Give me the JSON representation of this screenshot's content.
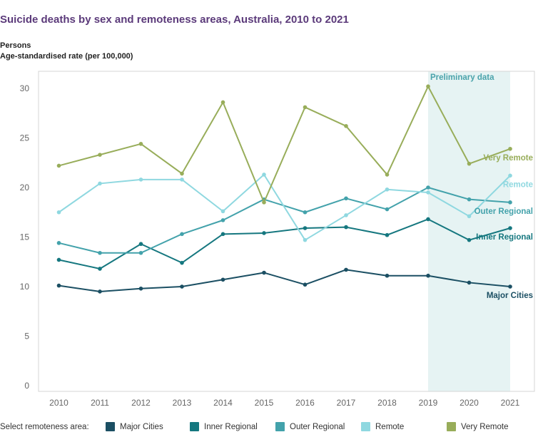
{
  "title": "Suicide deaths by sex and remoteness areas, Australia, 2010 to 2021",
  "subtitle_1": "Persons",
  "subtitle_2": "Age-standardised rate (per 100,000)",
  "legend_label": "Select remoteness area:",
  "chart_data": {
    "type": "line",
    "title": "Suicide deaths by sex and remoteness areas, Australia, 2010 to 2021",
    "ylabel": "Age-standardised rate (per 100,000)",
    "xlabel": "",
    "x": [
      2010,
      2011,
      2012,
      2013,
      2014,
      2015,
      2016,
      2017,
      2018,
      2019,
      2020,
      2021
    ],
    "ylim": [
      0,
      30
    ],
    "yticks": [
      0,
      5,
      10,
      15,
      20,
      25,
      30
    ],
    "grid": false,
    "legend": "bottom",
    "shaded_region": {
      "label": "Preliminary data",
      "x_start": 2019,
      "x_end": 2021,
      "color": "#e6f3f3"
    },
    "series": [
      {
        "name": "Major Cities",
        "color": "#1b4f63",
        "values": [
          10.1,
          9.5,
          9.8,
          10.0,
          10.7,
          11.4,
          10.2,
          11.7,
          11.1,
          11.1,
          10.4,
          10.0
        ]
      },
      {
        "name": "Inner Regional",
        "color": "#15777f",
        "values": [
          12.7,
          11.8,
          14.3,
          12.4,
          15.3,
          15.4,
          15.9,
          16.0,
          15.2,
          16.8,
          14.7,
          15.9
        ]
      },
      {
        "name": "Outer Regional",
        "color": "#43a2ab",
        "values": [
          14.4,
          13.4,
          13.4,
          15.3,
          16.7,
          18.8,
          17.5,
          18.9,
          17.8,
          20.0,
          18.8,
          18.5
        ]
      },
      {
        "name": "Remote",
        "color": "#8fd8e0",
        "values": [
          17.5,
          20.4,
          20.8,
          20.8,
          17.6,
          21.3,
          14.7,
          17.2,
          19.8,
          19.5,
          17.1,
          21.2
        ]
      },
      {
        "name": "Very Remote",
        "color": "#98ad5a",
        "values": [
          22.2,
          23.3,
          24.4,
          21.4,
          28.6,
          18.5,
          28.1,
          26.2,
          21.3,
          30.2,
          22.4,
          23.9
        ]
      }
    ]
  }
}
